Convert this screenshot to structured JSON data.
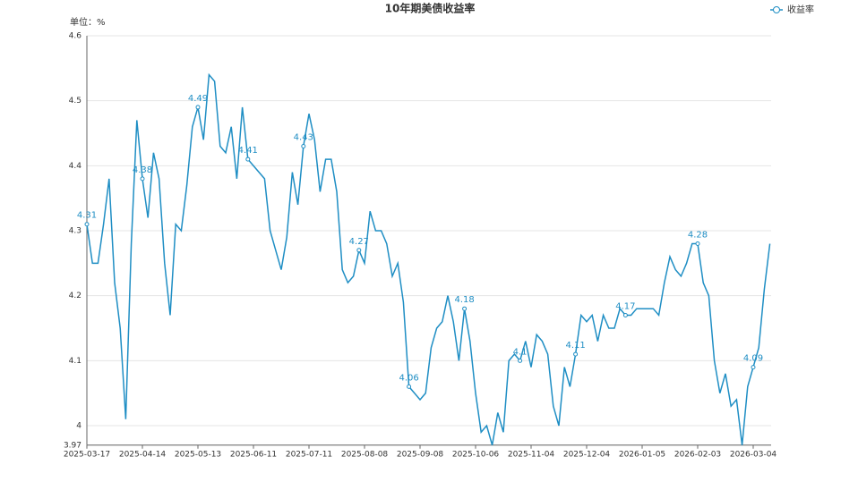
{
  "chart_data": {
    "type": "line",
    "title": "10年期美债收益率",
    "ylabel": "单位：%",
    "categories": [
      "2025-03-17",
      null,
      null,
      null,
      null,
      null,
      null,
      null,
      null,
      null,
      "2025-04-14",
      null,
      null,
      null,
      null,
      null,
      null,
      null,
      null,
      null,
      "2025-05-13",
      null,
      null,
      null,
      null,
      null,
      null,
      null,
      null,
      null,
      "2025-06-11",
      null,
      null,
      null,
      null,
      null,
      null,
      null,
      null,
      null,
      "2025-07-11",
      null,
      null,
      null,
      null,
      null,
      null,
      null,
      null,
      null,
      "2025-08-08",
      null,
      null,
      null,
      null,
      null,
      null,
      null,
      null,
      null,
      "2025-09-08",
      null,
      null,
      null,
      null,
      null,
      null,
      null,
      null,
      null,
      "2025-10-06",
      null,
      null,
      null,
      null,
      null,
      null,
      null,
      null,
      null,
      "2025-11-04",
      null,
      null,
      null,
      null,
      null,
      null,
      null,
      null,
      null,
      "2025-12-04",
      null,
      null,
      null,
      null,
      null,
      null,
      null,
      null,
      null,
      "2026-01-05",
      null,
      null,
      null,
      null,
      null,
      null,
      null,
      null,
      null,
      "2026-02-03",
      null,
      null,
      null,
      null,
      null,
      null,
      null,
      null,
      null,
      "2026-03-04",
      null,
      null,
      null
    ],
    "series": [
      {
        "name": "收益率",
        "color": "#1f8ec4",
        "values": [
          4.31,
          4.25,
          4.25,
          4.31,
          4.38,
          4.22,
          4.15,
          4.01,
          4.28,
          4.47,
          4.38,
          4.32,
          4.42,
          4.38,
          4.25,
          4.17,
          4.31,
          4.3,
          4.37,
          4.46,
          4.49,
          4.44,
          4.54,
          4.53,
          4.43,
          4.42,
          4.46,
          4.38,
          4.49,
          4.41,
          4.4,
          4.39,
          4.38,
          4.3,
          4.27,
          4.24,
          4.29,
          4.39,
          4.34,
          4.43,
          4.48,
          4.44,
          4.36,
          4.41,
          4.41,
          4.36,
          4.24,
          4.22,
          4.23,
          4.27,
          4.25,
          4.33,
          4.3,
          4.3,
          4.28,
          4.23,
          4.25,
          4.19,
          4.06,
          4.05,
          4.04,
          4.05,
          4.12,
          4.15,
          4.16,
          4.2,
          4.16,
          4.1,
          4.18,
          4.13,
          4.05,
          3.99,
          4.0,
          3.97,
          4.02,
          3.99,
          4.1,
          4.11,
          4.1,
          4.13,
          4.09,
          4.14,
          4.13,
          4.11,
          4.03,
          4.0,
          4.09,
          4.06,
          4.11,
          4.17,
          4.16,
          4.17,
          4.13,
          4.17,
          4.15,
          4.15,
          4.18,
          4.17,
          4.17,
          4.18,
          4.18,
          4.18,
          4.18,
          4.17,
          4.22,
          4.26,
          4.24,
          4.23,
          4.25,
          4.28,
          4.28,
          4.22,
          4.2,
          4.1,
          4.05,
          4.08,
          4.03,
          4.04,
          3.97,
          4.06,
          4.09,
          4.12,
          4.21,
          4.28
        ],
        "value_labels": [
          "4.31",
          null,
          null,
          null,
          null,
          null,
          null,
          null,
          null,
          null,
          "4.38",
          null,
          null,
          null,
          null,
          null,
          null,
          null,
          null,
          null,
          "4.49",
          null,
          null,
          null,
          null,
          null,
          null,
          null,
          null,
          "4.41",
          null,
          null,
          null,
          null,
          null,
          null,
          null,
          null,
          null,
          "4.43",
          null,
          null,
          null,
          null,
          null,
          null,
          null,
          null,
          null,
          "4.27",
          null,
          null,
          null,
          null,
          null,
          null,
          null,
          null,
          "4.06",
          null,
          null,
          null,
          null,
          null,
          null,
          null,
          null,
          null,
          "4.18",
          null,
          null,
          null,
          null,
          null,
          null,
          null,
          null,
          null,
          "4.1",
          null,
          null,
          null,
          null,
          null,
          null,
          null,
          null,
          null,
          "4.11",
          null,
          null,
          null,
          null,
          null,
          null,
          null,
          null,
          "4.17",
          null,
          null,
          null,
          null,
          null,
          null,
          null,
          null,
          null,
          null,
          null,
          null,
          "4.28",
          null,
          null,
          null,
          null,
          null,
          null,
          null,
          null,
          null,
          "4.09",
          null,
          null,
          null
        ]
      }
    ],
    "ylim": [
      3.97,
      4.6
    ],
    "yticks": [
      3.97,
      4,
      4.1,
      4.2,
      4.3,
      4.4,
      4.5,
      4.6
    ],
    "grid": true,
    "legend": "top-right"
  }
}
